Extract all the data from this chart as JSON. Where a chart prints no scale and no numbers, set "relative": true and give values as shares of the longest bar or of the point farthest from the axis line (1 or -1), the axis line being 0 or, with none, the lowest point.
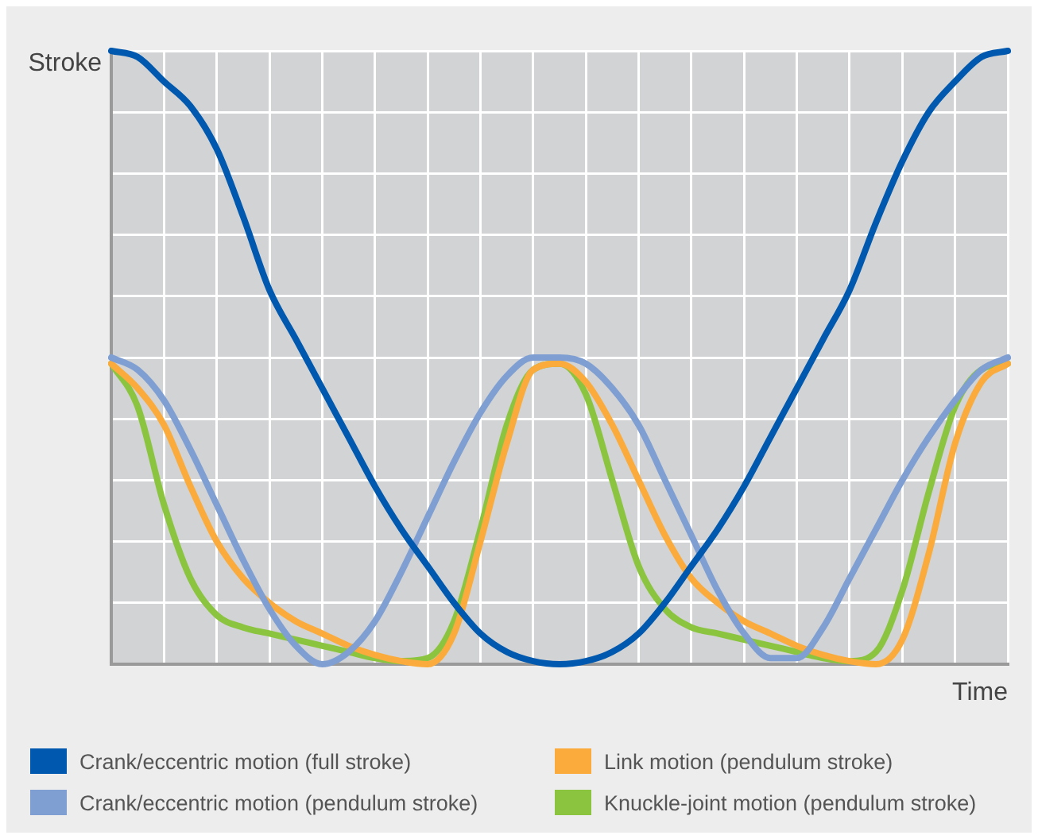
{
  "chart_data": {
    "type": "line",
    "relative": true,
    "xlabel": "Time",
    "ylabel": "Stroke",
    "categories": [
      null,
      null,
      null,
      null,
      null,
      null,
      null,
      null,
      null,
      null,
      null,
      null,
      null,
      null,
      null,
      null,
      null,
      null,
      null,
      null,
      null,
      null,
      null,
      null,
      null,
      null,
      null,
      null,
      null,
      null,
      null,
      null,
      null,
      null,
      null
    ],
    "series": [
      {
        "name": "Crank/eccentric motion (full stroke)",
        "color": "#0059ae",
        "values": [
          1,
          0.99,
          0.95,
          0.91,
          0.84,
          0.73,
          0.61,
          0.53,
          0.45,
          0.37,
          0.29,
          0.22,
          0.16,
          0.1,
          0.05,
          0.02,
          0.005,
          0,
          0.005,
          0.02,
          0.05,
          0.1,
          0.16,
          0.22,
          0.29,
          0.37,
          0.45,
          0.53,
          0.61,
          0.72,
          0.82,
          0.9,
          0.95,
          0.99,
          1
        ]
      },
      {
        "name": "Crank/eccentric motion (pendulum stroke)",
        "color": "#7f9fd3",
        "values": [
          0.5,
          0.48,
          0.43,
          0.35,
          0.26,
          0.17,
          0.09,
          0.03,
          0,
          0.02,
          0.07,
          0.15,
          0.24,
          0.33,
          0.41,
          0.47,
          0.5,
          0.5,
          0.49,
          0.45,
          0.39,
          0.3,
          0.21,
          0.12,
          0.05,
          0.01,
          0.01,
          0.06,
          0.14,
          0.22,
          0.3,
          0.37,
          0.43,
          0.48,
          0.5
        ]
      },
      {
        "name": "Link motion (pendulum stroke)",
        "color": "#fbab3b",
        "values": [
          0.49,
          0.45,
          0.39,
          0.29,
          0.2,
          0.14,
          0.1,
          0.07,
          0.05,
          0.03,
          0.015,
          0.005,
          0,
          0.05,
          0.2,
          0.36,
          0.48,
          0.49,
          0.46,
          0.39,
          0.3,
          0.21,
          0.14,
          0.1,
          0.07,
          0.05,
          0.03,
          0.015,
          0.005,
          0,
          0.04,
          0.18,
          0.36,
          0.46,
          0.49
        ]
      },
      {
        "name": "Knuckle-joint motion (pendulum stroke)",
        "color": "#8bc53f",
        "values": [
          0.49,
          0.42,
          0.26,
          0.14,
          0.08,
          0.06,
          0.05,
          0.04,
          0.03,
          0.02,
          0.01,
          0.005,
          0.01,
          0.07,
          0.22,
          0.39,
          0.48,
          0.49,
          0.44,
          0.3,
          0.16,
          0.09,
          0.06,
          0.05,
          0.04,
          0.03,
          0.02,
          0.01,
          0.005,
          0.02,
          0.12,
          0.28,
          0.42,
          0.48,
          0.49
        ]
      }
    ],
    "grid": true,
    "legend": "bottom",
    "tick_labels": false
  }
}
